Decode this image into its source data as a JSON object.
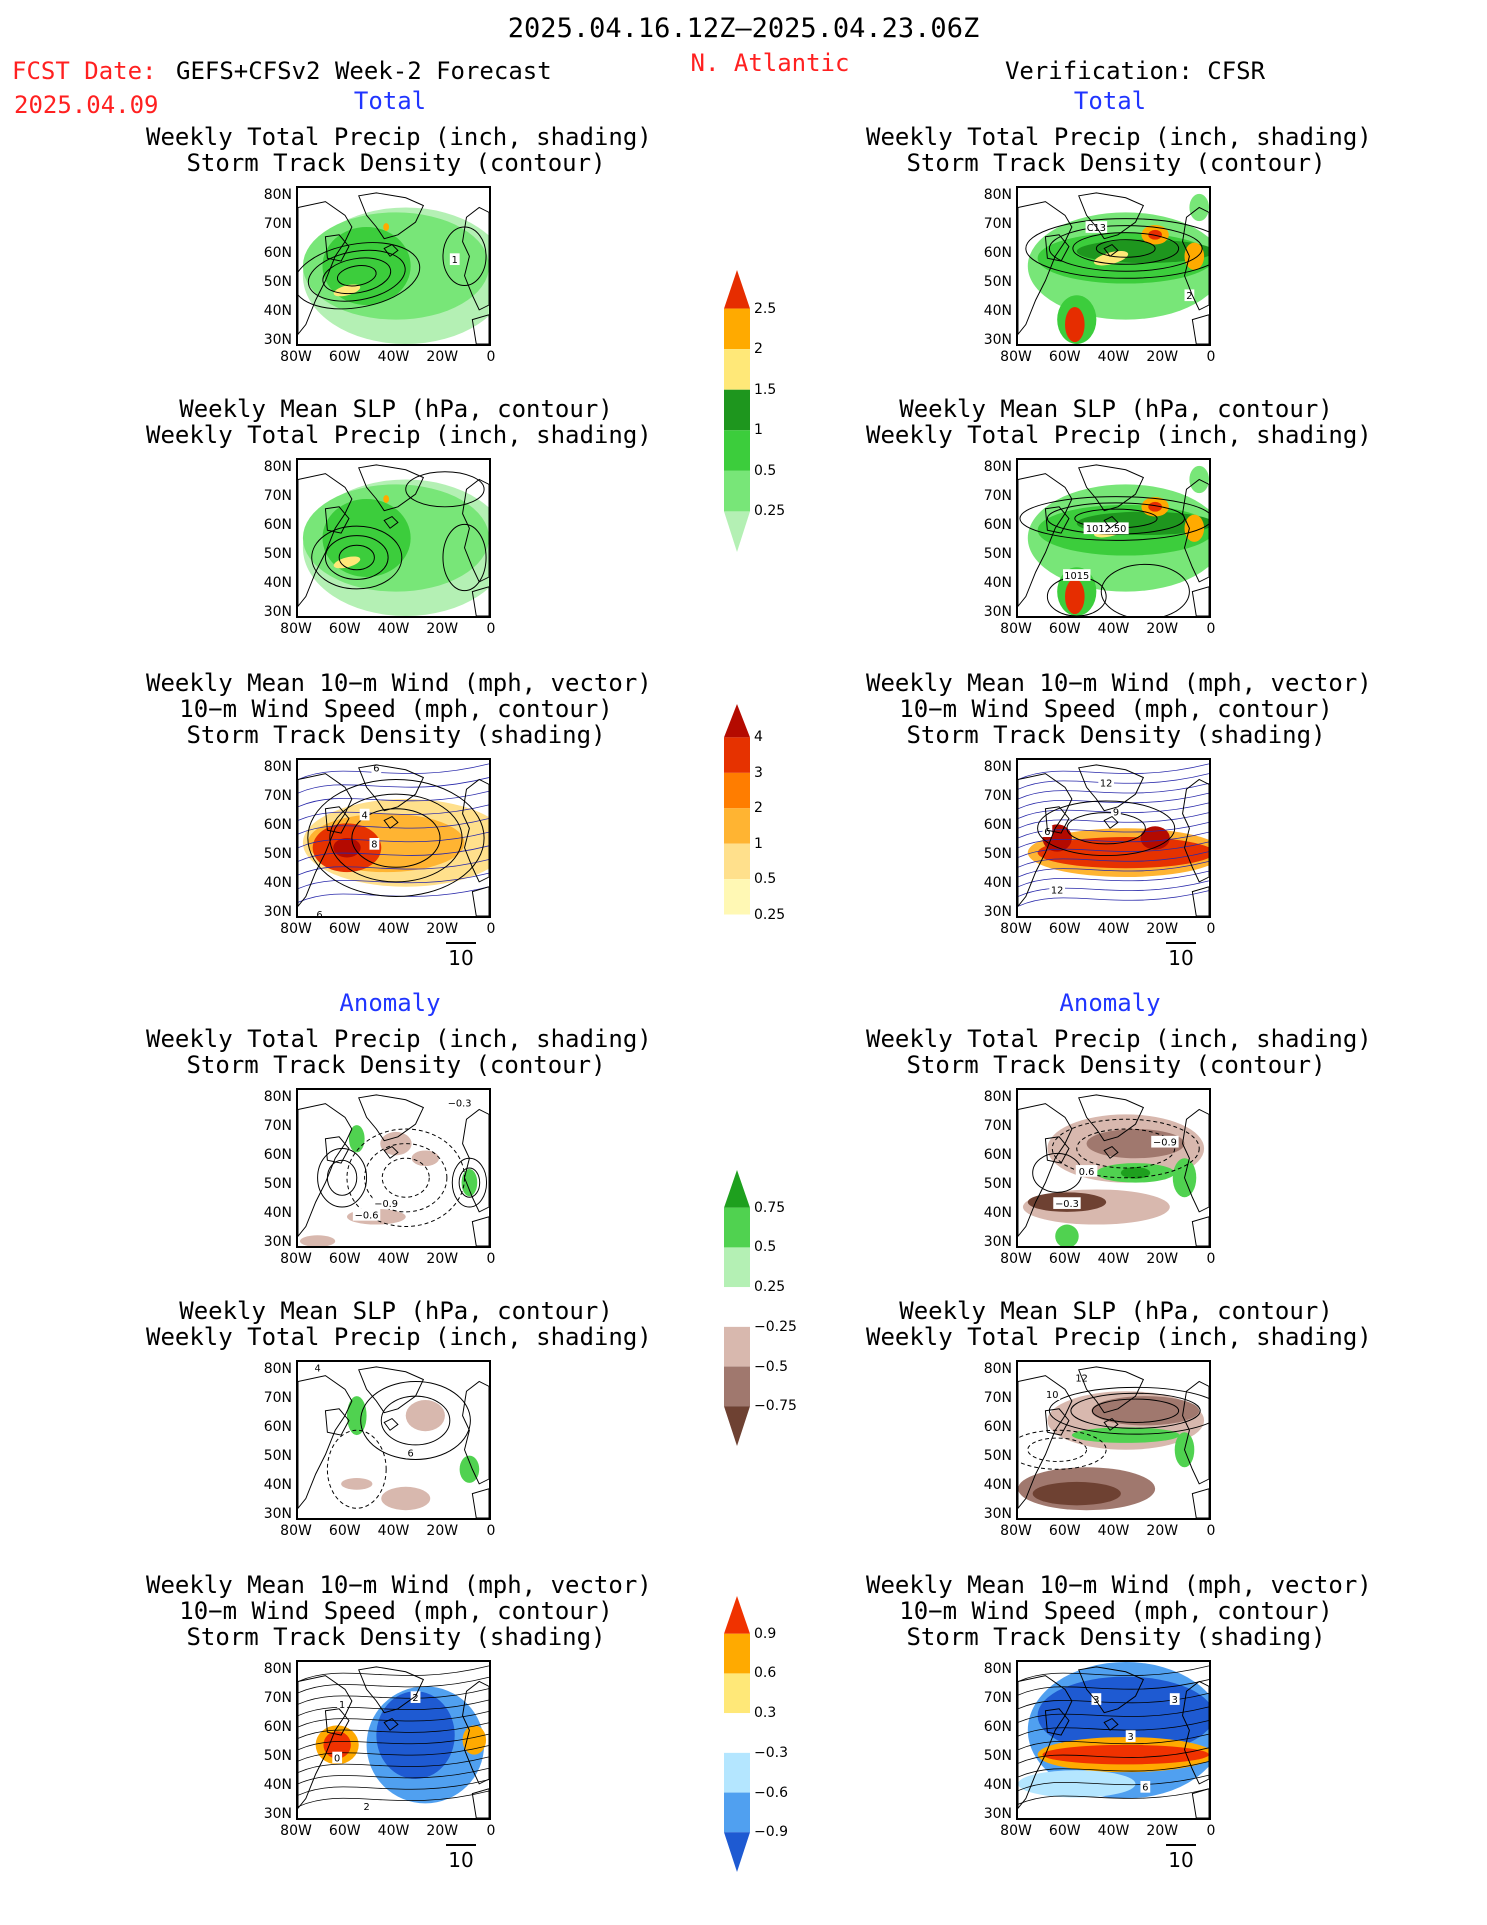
{
  "header": {
    "period": "2025.04.16.12Z–2025.04.23.06Z",
    "fcst_label": "FCST Date:",
    "fcst_model": "GEFS+CFSv2 Week-2 Forecast",
    "fcst_date": "2025.04.09",
    "region": "N. Atlantic",
    "verification": "Verification: CFSR"
  },
  "sections": {
    "total": "Total",
    "anomaly": "Anomaly"
  },
  "titles": {
    "precip_track_1": "Weekly Total Precip (inch, shading)",
    "precip_track_2": "Storm Track Density (contour)",
    "slp_precip_1": "Weekly Mean SLP (hPa, contour)",
    "slp_precip_2": "Weekly Total Precip (inch, shading)",
    "wind_1": "Weekly Mean 10−m Wind (mph, vector)",
    "wind_2": "10−m Wind Speed (mph, contour)",
    "wind_3": "Storm Track Density (shading)"
  },
  "axes": {
    "lat_ticks": [
      "80N",
      "70N",
      "60N",
      "50N",
      "40N",
      "30N"
    ],
    "lon_ticks": [
      "80W",
      "60W",
      "40W",
      "20W",
      "0"
    ],
    "vector_ref": "10"
  },
  "colors": {
    "precip_total": [
      "#b4f0b4",
      "#78e678",
      "#3ccd3c",
      "#1e961e",
      "#ffe878",
      "#ffaa00",
      "#e62d00"
    ],
    "track_total": [
      "#fff8b4",
      "#ffe08c",
      "#ffb432",
      "#ff7d00",
      "#e63200",
      "#b40a00"
    ],
    "precip_anom": [
      "#6e4132",
      "#a0786e",
      "#d8b8ae",
      "#ffffff",
      "#b4f0b4",
      "#50d250",
      "#1ea01e"
    ],
    "track_anom": [
      "#1e5ad2",
      "#50a0f0",
      "#b4e6ff",
      "#ffffff",
      "#ffe878",
      "#ffaa00",
      "#f03200"
    ]
  },
  "chart_data": [
    {
      "type": "heatmap",
      "name": "colorbar-precip-total",
      "levels": [
        0.25,
        0.5,
        1,
        1.5,
        2,
        2.5
      ],
      "labels": [
        "2.5",
        "2",
        "1.5",
        "1",
        "0.5",
        "0.25"
      ]
    },
    {
      "type": "heatmap",
      "name": "colorbar-track-total",
      "levels": [
        0.25,
        0.5,
        1,
        2,
        3,
        4
      ],
      "labels": [
        "4",
        "3",
        "2",
        "1",
        "0.5",
        "0.25"
      ]
    },
    {
      "type": "heatmap",
      "name": "colorbar-precip-anomaly",
      "levels": [
        -0.75,
        -0.5,
        -0.25,
        0.25,
        0.5,
        0.75
      ],
      "labels": [
        "0.75",
        "0.5",
        "0.25",
        "−0.25",
        "−0.5",
        "−0.75"
      ]
    },
    {
      "type": "heatmap",
      "name": "colorbar-track-anomaly",
      "levels": [
        -0.9,
        -0.6,
        -0.3,
        0.3,
        0.6,
        0.9
      ],
      "labels": [
        "0.9",
        "0.6",
        "0.3",
        "−0.3",
        "−0.6",
        "−0.9"
      ]
    }
  ],
  "panel_labels": {
    "fcst_track_total": "1",
    "cfsr_track_total_a": "C13",
    "cfsr_track_total_b": "2",
    "cfsr_slp_a": "1012.50",
    "cfsr_slp_b": "1015",
    "fcst_wind_a": "6",
    "fcst_wind_b": "4",
    "fcst_wind_c": "8",
    "fcst_wind_d": "6",
    "cfsr_wind_a": "12",
    "cfsr_wind_b": "9",
    "cfsr_wind_c": "6",
    "cfsr_wind_d": "12",
    "fcst_anom_a": "−0.3",
    "fcst_anom_b": "−0.9",
    "fcst_anom_c": "−0.6",
    "cfsr_anom_a": "−0.9",
    "cfsr_anom_b": "0.6",
    "cfsr_anom_c": "−0.3",
    "fcst_slp_anom": "6",
    "fcst_slp_anom_b": "4",
    "cfsr_slp_anom_a": "12",
    "cfsr_slp_anom_b": "10",
    "fcst_wanom_a": "2",
    "fcst_wanom_b": "0",
    "fcst_wanom_c": "2",
    "fcst_wanom_d": "1",
    "cfsr_wanom_a": "3",
    "cfsr_wanom_b": "3",
    "cfsr_wanom_c": "3",
    "cfsr_wanom_d": "6"
  }
}
